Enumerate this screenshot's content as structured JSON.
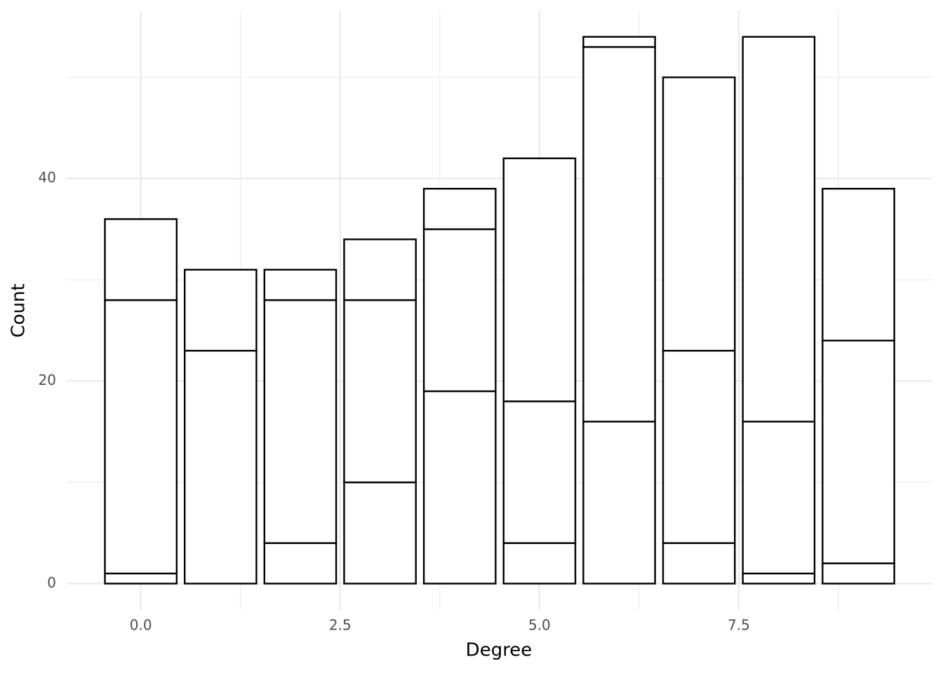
{
  "chart_data": {
    "type": "stacked_bar",
    "x_label": "Degree",
    "y_label": "Count",
    "x": [
      0,
      1,
      2,
      3,
      4,
      5,
      6,
      7,
      8,
      9
    ],
    "series": [
      {
        "color": "#ffffff",
        "values": [
          1,
          0,
          4,
          10,
          19,
          4,
          16,
          4,
          1,
          2
        ]
      },
      {
        "color": "#ffffff",
        "values": [
          27,
          23,
          24,
          18,
          16,
          14,
          37,
          19,
          15,
          22
        ]
      },
      {
        "color": "#ffffff",
        "values": [
          8,
          8,
          3,
          6,
          4,
          24,
          1,
          27,
          38,
          15
        ]
      }
    ],
    "edgecolor": "#000000",
    "bar_width": 0.9,
    "xlim": [
      -0.93,
      9.92
    ],
    "ylim": [
      -2.6,
      56.6
    ],
    "xticks": [
      {
        "value": 0,
        "label": "0.0"
      },
      2.5,
      {
        "value": 5,
        "label": "5.0"
      },
      7.5
    ],
    "yticks": [
      0,
      20,
      40
    ],
    "x_minor_ticks": [
      1.25,
      3.75,
      6.25,
      8.75
    ],
    "y_minor_ticks": [
      10,
      30,
      50
    ],
    "grid": true
  }
}
